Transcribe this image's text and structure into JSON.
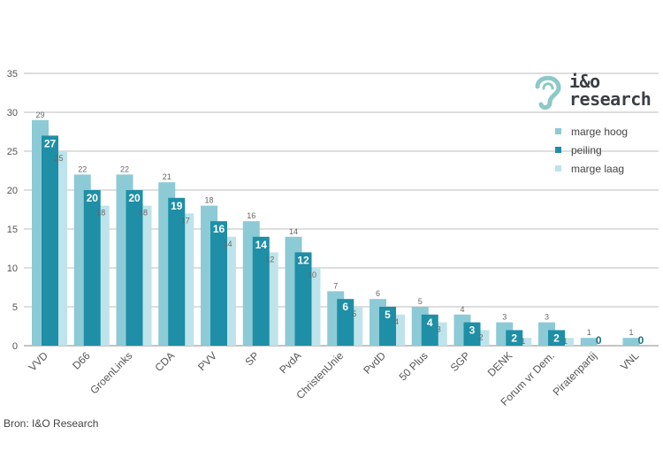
{
  "chart_data": {
    "type": "bar",
    "categories": [
      "VVD",
      "D66",
      "GroenLinks",
      "CDA",
      "PVV",
      "SP",
      "PvdA",
      "ChristenUnie",
      "PvdD",
      "50 Plus",
      "SGP",
      "DENK",
      "Forum vr Dem.",
      "Piratenpartij",
      "VNL"
    ],
    "series": [
      {
        "name": "marge hoog",
        "color": "#8ccad6",
        "values": [
          29,
          22,
          22,
          21,
          18,
          16,
          14,
          7,
          6,
          5,
          4,
          3,
          3,
          1,
          1
        ]
      },
      {
        "name": "peiling",
        "color": "#1e8fa6",
        "values": [
          27,
          20,
          20,
          19,
          16,
          14,
          12,
          6,
          5,
          4,
          3,
          2,
          2,
          0,
          0
        ]
      },
      {
        "name": "marge laag",
        "color": "#bfe3ea",
        "values": [
          25,
          18,
          18,
          17,
          14,
          12,
          10,
          5,
          4,
          3,
          2,
          1,
          1,
          0,
          0
        ]
      }
    ],
    "ylim": [
      0,
      35
    ],
    "yticks": [
      0,
      5,
      10,
      15,
      20,
      25,
      30,
      35
    ],
    "grid": true,
    "legend_position": "top-right"
  },
  "logo": {
    "line1": "i&o",
    "line2": "research",
    "color_accent": "#8cc9c6"
  },
  "source": "Bron: I&O Research"
}
